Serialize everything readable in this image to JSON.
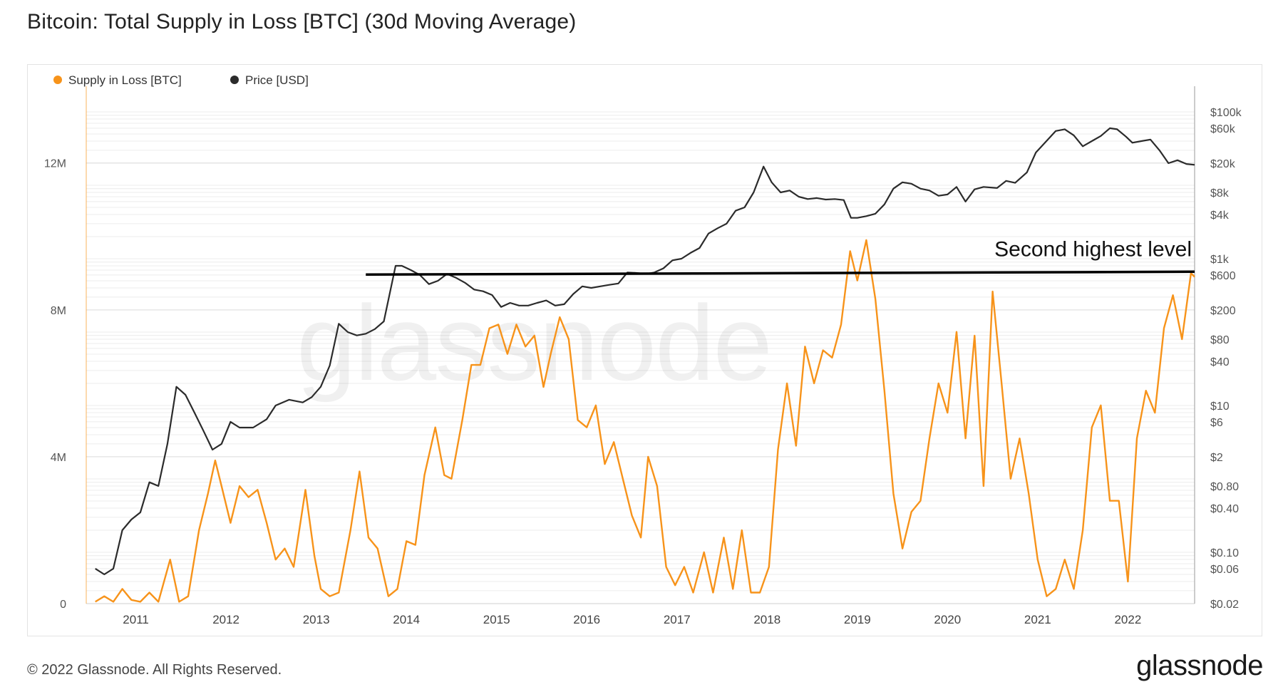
{
  "title": "Bitcoin: Total Supply in Loss [BTC] (30d Moving Average)",
  "footer": {
    "copyright": "© 2022 Glassnode. All Rights Reserved.",
    "brand": "glassnode",
    "watermark": "glassnode"
  },
  "colors": {
    "supply": "#f7931a",
    "price": "#2b2b2b",
    "annotation": "#000000",
    "grid": "#ececec",
    "axis": "#9a9a9a"
  },
  "chart_data": {
    "type": "line",
    "title": "Bitcoin: Total Supply in Loss [BTC] (30d Moving Average)",
    "legend": {
      "placement": "top-left",
      "entries": [
        "Supply in Loss [BTC]",
        "Price [USD]"
      ]
    },
    "x_ticks": [
      "2011",
      "2012",
      "2013",
      "2014",
      "2015",
      "2016",
      "2017",
      "2018",
      "2019",
      "2020",
      "2021",
      "2022"
    ],
    "xlim": [
      2010.45,
      2022.74
    ],
    "left_axis": {
      "ticks": [
        {
          "label": "0",
          "value": 0
        },
        {
          "label": "4M",
          "value": 4
        },
        {
          "label": "8M",
          "value": 8
        },
        {
          "label": "12M",
          "value": 12
        }
      ],
      "ylim": [
        0,
        13.8
      ]
    },
    "right_axis": {
      "scale": "log",
      "ticks": [
        {
          "label": "$100k",
          "value": 100000
        },
        {
          "label": "$60k",
          "value": 60000
        },
        {
          "label": "$20k",
          "value": 20000
        },
        {
          "label": "$8k",
          "value": 8000
        },
        {
          "label": "$4k",
          "value": 4000
        },
        {
          "label": "$1k",
          "value": 1000
        },
        {
          "label": "$600",
          "value": 600
        },
        {
          "label": "$200",
          "value": 200
        },
        {
          "label": "$80",
          "value": 80
        },
        {
          "label": "$40",
          "value": 40
        },
        {
          "label": "$10",
          "value": 10
        },
        {
          "label": "$6",
          "value": 6
        },
        {
          "label": "$2",
          "value": 2
        },
        {
          "label": "$0.80",
          "value": 0.8
        },
        {
          "label": "$0.40",
          "value": 0.4
        },
        {
          "label": "$0.10",
          "value": 0.1
        },
        {
          "label": "$0.06",
          "value": 0.06
        },
        {
          "label": "$0.02",
          "value": 0.02
        }
      ],
      "ylim": [
        0.02,
        160000
      ]
    },
    "series": [
      {
        "name": "Supply in Loss [BTC]",
        "unit": "M BTC",
        "color": "#f7931a",
        "points": [
          [
            2010.55,
            0.05
          ],
          [
            2010.65,
            0.2
          ],
          [
            2010.75,
            0.05
          ],
          [
            2010.85,
            0.4
          ],
          [
            2010.95,
            0.1
          ],
          [
            2011.05,
            0.05
          ],
          [
            2011.15,
            0.3
          ],
          [
            2011.25,
            0.05
          ],
          [
            2011.38,
            1.2
          ],
          [
            2011.48,
            0.05
          ],
          [
            2011.58,
            0.2
          ],
          [
            2011.7,
            2.0
          ],
          [
            2011.8,
            3.0
          ],
          [
            2011.88,
            3.9
          ],
          [
            2011.95,
            3.2
          ],
          [
            2012.05,
            2.2
          ],
          [
            2012.15,
            3.2
          ],
          [
            2012.25,
            2.9
          ],
          [
            2012.35,
            3.1
          ],
          [
            2012.45,
            2.2
          ],
          [
            2012.55,
            1.2
          ],
          [
            2012.65,
            1.5
          ],
          [
            2012.75,
            1.0
          ],
          [
            2012.88,
            3.1
          ],
          [
            2012.98,
            1.3
          ],
          [
            2013.05,
            0.4
          ],
          [
            2013.15,
            0.2
          ],
          [
            2013.25,
            0.3
          ],
          [
            2013.38,
            2.0
          ],
          [
            2013.48,
            3.6
          ],
          [
            2013.58,
            1.8
          ],
          [
            2013.68,
            1.5
          ],
          [
            2013.8,
            0.2
          ],
          [
            2013.9,
            0.4
          ],
          [
            2014.0,
            1.7
          ],
          [
            2014.1,
            1.6
          ],
          [
            2014.2,
            3.5
          ],
          [
            2014.32,
            4.8
          ],
          [
            2014.42,
            3.5
          ],
          [
            2014.5,
            3.4
          ],
          [
            2014.62,
            5.0
          ],
          [
            2014.72,
            6.5
          ],
          [
            2014.82,
            6.5
          ],
          [
            2014.92,
            7.5
          ],
          [
            2015.02,
            7.6
          ],
          [
            2015.12,
            6.8
          ],
          [
            2015.22,
            7.6
          ],
          [
            2015.32,
            7.0
          ],
          [
            2015.42,
            7.3
          ],
          [
            2015.52,
            5.9
          ],
          [
            2015.6,
            6.8
          ],
          [
            2015.7,
            7.8
          ],
          [
            2015.8,
            7.2
          ],
          [
            2015.9,
            5.0
          ],
          [
            2016.0,
            4.8
          ],
          [
            2016.1,
            5.4
          ],
          [
            2016.2,
            3.8
          ],
          [
            2016.3,
            4.4
          ],
          [
            2016.4,
            3.4
          ],
          [
            2016.5,
            2.4
          ],
          [
            2016.6,
            1.8
          ],
          [
            2016.68,
            4.0
          ],
          [
            2016.78,
            3.2
          ],
          [
            2016.88,
            1.0
          ],
          [
            2016.98,
            0.5
          ],
          [
            2017.08,
            1.0
          ],
          [
            2017.18,
            0.3
          ],
          [
            2017.3,
            1.4
          ],
          [
            2017.4,
            0.3
          ],
          [
            2017.52,
            1.8
          ],
          [
            2017.62,
            0.4
          ],
          [
            2017.72,
            2.0
          ],
          [
            2017.82,
            0.3
          ],
          [
            2017.92,
            0.3
          ],
          [
            2018.02,
            1.0
          ],
          [
            2018.12,
            4.2
          ],
          [
            2018.22,
            6.0
          ],
          [
            2018.32,
            4.3
          ],
          [
            2018.42,
            7.0
          ],
          [
            2018.52,
            6.0
          ],
          [
            2018.62,
            6.9
          ],
          [
            2018.72,
            6.7
          ],
          [
            2018.82,
            7.6
          ],
          [
            2018.92,
            9.6
          ],
          [
            2019.0,
            8.8
          ],
          [
            2019.1,
            9.9
          ],
          [
            2019.2,
            8.3
          ],
          [
            2019.3,
            5.8
          ],
          [
            2019.4,
            3.0
          ],
          [
            2019.5,
            1.5
          ],
          [
            2019.6,
            2.5
          ],
          [
            2019.7,
            2.8
          ],
          [
            2019.8,
            4.5
          ],
          [
            2019.9,
            6.0
          ],
          [
            2020.0,
            5.2
          ],
          [
            2020.1,
            7.4
          ],
          [
            2020.2,
            4.5
          ],
          [
            2020.3,
            7.3
          ],
          [
            2020.4,
            3.2
          ],
          [
            2020.5,
            8.5
          ],
          [
            2020.6,
            6.0
          ],
          [
            2020.7,
            3.4
          ],
          [
            2020.8,
            4.5
          ],
          [
            2020.9,
            3.0
          ],
          [
            2021.0,
            1.2
          ],
          [
            2021.1,
            0.2
          ],
          [
            2021.2,
            0.4
          ],
          [
            2021.3,
            1.2
          ],
          [
            2021.4,
            0.4
          ],
          [
            2021.5,
            2.0
          ],
          [
            2021.6,
            4.8
          ],
          [
            2021.7,
            5.4
          ],
          [
            2021.8,
            2.8
          ],
          [
            2021.9,
            2.8
          ],
          [
            2022.0,
            0.6
          ],
          [
            2022.1,
            4.5
          ],
          [
            2022.2,
            5.8
          ],
          [
            2022.3,
            5.2
          ],
          [
            2022.4,
            7.5
          ],
          [
            2022.5,
            8.4
          ],
          [
            2022.6,
            7.2
          ],
          [
            2022.7,
            9.0
          ],
          [
            2022.74,
            8.9
          ]
        ]
      },
      {
        "name": "Price [USD]",
        "unit": "USD",
        "color": "#2b2b2b",
        "points": [
          [
            2010.55,
            0.06
          ],
          [
            2010.65,
            0.05
          ],
          [
            2010.75,
            0.06
          ],
          [
            2010.85,
            0.2
          ],
          [
            2010.95,
            0.28
          ],
          [
            2011.05,
            0.35
          ],
          [
            2011.15,
            0.9
          ],
          [
            2011.25,
            0.8
          ],
          [
            2011.35,
            3.0
          ],
          [
            2011.45,
            18
          ],
          [
            2011.55,
            14
          ],
          [
            2011.65,
            8
          ],
          [
            2011.75,
            4.5
          ],
          [
            2011.85,
            2.5
          ],
          [
            2011.95,
            3.0
          ],
          [
            2012.05,
            6.0
          ],
          [
            2012.15,
            5.0
          ],
          [
            2012.3,
            5.0
          ],
          [
            2012.45,
            6.5
          ],
          [
            2012.55,
            10
          ],
          [
            2012.7,
            12
          ],
          [
            2012.85,
            11
          ],
          [
            2012.95,
            13
          ],
          [
            2013.05,
            18
          ],
          [
            2013.15,
            35
          ],
          [
            2013.25,
            130
          ],
          [
            2013.35,
            100
          ],
          [
            2013.45,
            90
          ],
          [
            2013.55,
            95
          ],
          [
            2013.65,
            110
          ],
          [
            2013.75,
            140
          ],
          [
            2013.88,
            800
          ],
          [
            2013.95,
            800
          ],
          [
            2014.05,
            700
          ],
          [
            2014.15,
            600
          ],
          [
            2014.25,
            450
          ],
          [
            2014.35,
            500
          ],
          [
            2014.45,
            620
          ],
          [
            2014.55,
            550
          ],
          [
            2014.65,
            470
          ],
          [
            2014.75,
            380
          ],
          [
            2014.85,
            360
          ],
          [
            2014.95,
            320
          ],
          [
            2015.05,
            220
          ],
          [
            2015.15,
            250
          ],
          [
            2015.25,
            230
          ],
          [
            2015.35,
            230
          ],
          [
            2015.45,
            250
          ],
          [
            2015.55,
            270
          ],
          [
            2015.65,
            230
          ],
          [
            2015.75,
            240
          ],
          [
            2015.85,
            330
          ],
          [
            2015.95,
            420
          ],
          [
            2016.05,
            400
          ],
          [
            2016.15,
            420
          ],
          [
            2016.25,
            440
          ],
          [
            2016.35,
            460
          ],
          [
            2016.45,
            650
          ],
          [
            2016.55,
            640
          ],
          [
            2016.65,
            620
          ],
          [
            2016.75,
            650
          ],
          [
            2016.85,
            740
          ],
          [
            2016.95,
            950
          ],
          [
            2017.05,
            1000
          ],
          [
            2017.15,
            1200
          ],
          [
            2017.25,
            1400
          ],
          [
            2017.35,
            2200
          ],
          [
            2017.45,
            2600
          ],
          [
            2017.55,
            3000
          ],
          [
            2017.65,
            4500
          ],
          [
            2017.75,
            5000
          ],
          [
            2017.85,
            8000
          ],
          [
            2017.96,
            18000
          ],
          [
            2018.05,
            11000
          ],
          [
            2018.15,
            8000
          ],
          [
            2018.25,
            8500
          ],
          [
            2018.35,
            7000
          ],
          [
            2018.45,
            6500
          ],
          [
            2018.55,
            6700
          ],
          [
            2018.65,
            6400
          ],
          [
            2018.75,
            6500
          ],
          [
            2018.85,
            6300
          ],
          [
            2018.93,
            3600
          ],
          [
            2019.0,
            3600
          ],
          [
            2019.1,
            3800
          ],
          [
            2019.2,
            4100
          ],
          [
            2019.3,
            5500
          ],
          [
            2019.4,
            9000
          ],
          [
            2019.5,
            11000
          ],
          [
            2019.6,
            10500
          ],
          [
            2019.7,
            9000
          ],
          [
            2019.8,
            8500
          ],
          [
            2019.9,
            7200
          ],
          [
            2020.0,
            7500
          ],
          [
            2020.1,
            9500
          ],
          [
            2020.2,
            6000
          ],
          [
            2020.3,
            8800
          ],
          [
            2020.4,
            9500
          ],
          [
            2020.55,
            9200
          ],
          [
            2020.65,
            11500
          ],
          [
            2020.75,
            10800
          ],
          [
            2020.88,
            15000
          ],
          [
            2020.98,
            28000
          ],
          [
            2021.08,
            38000
          ],
          [
            2021.2,
            55000
          ],
          [
            2021.3,
            58000
          ],
          [
            2021.4,
            48000
          ],
          [
            2021.5,
            34000
          ],
          [
            2021.6,
            40000
          ],
          [
            2021.7,
            47000
          ],
          [
            2021.8,
            60000
          ],
          [
            2021.88,
            58000
          ],
          [
            2021.98,
            46000
          ],
          [
            2022.05,
            38000
          ],
          [
            2022.15,
            40000
          ],
          [
            2022.25,
            42000
          ],
          [
            2022.35,
            30000
          ],
          [
            2022.45,
            20000
          ],
          [
            2022.55,
            22000
          ],
          [
            2022.65,
            19500
          ],
          [
            2022.74,
            19000
          ]
        ]
      }
    ],
    "annotations": [
      {
        "type": "hline",
        "text": "Second highest level",
        "axis": "left",
        "y": 9.0,
        "x0": 2013.55,
        "x1": 2022.74
      }
    ]
  }
}
